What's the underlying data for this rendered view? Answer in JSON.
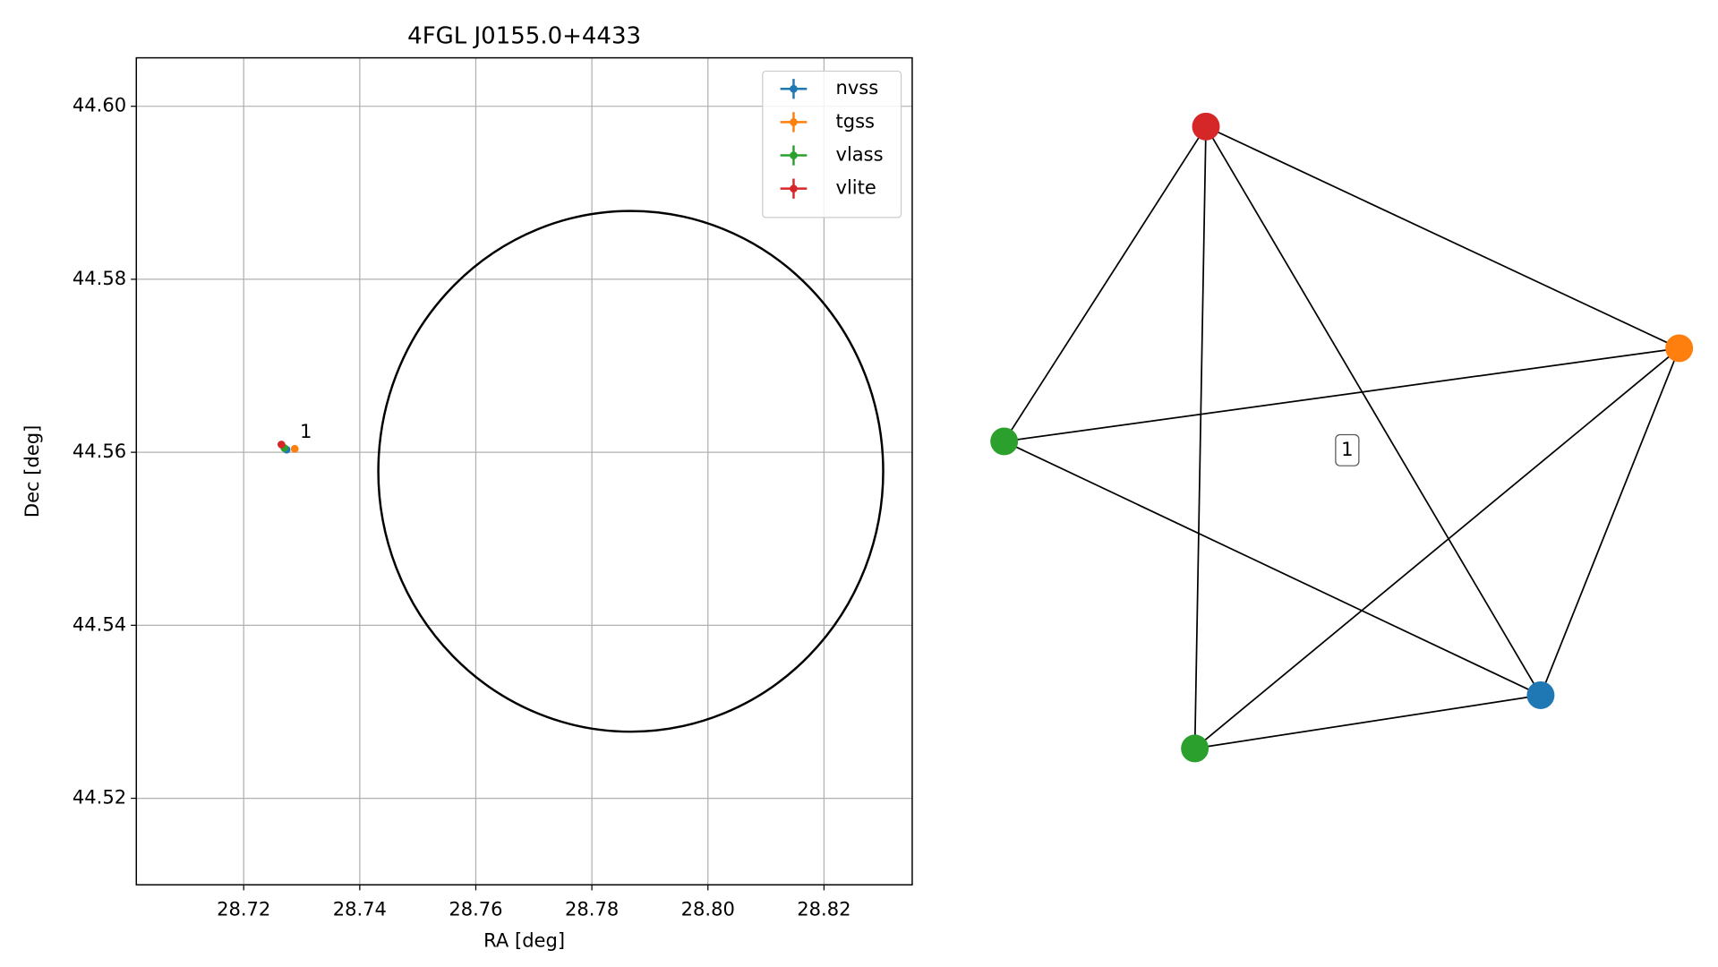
{
  "chart_data": [
    {
      "type": "scatter",
      "title": "4FGL J0155.0+4433",
      "x_label": "RA [deg]",
      "y_label": "Dec [deg]",
      "xlim": [
        28.7015,
        28.8352
      ],
      "ylim": [
        44.51,
        44.6056
      ],
      "xticks": [
        28.72,
        28.74,
        28.76,
        28.78,
        {
          "value": 28.8,
          "label": "28.80"
        },
        28.82
      ],
      "yticks": [
        44.52,
        44.54,
        44.56,
        44.58,
        {
          "value": 44.6,
          "label": "44.60"
        }
      ],
      "grid": true,
      "legend": "upper right",
      "series": [
        {
          "name": "nvss",
          "color": "#1f77b4",
          "x": [
            28.7274
          ],
          "values": [
            44.5603
          ]
        },
        {
          "name": "tgss",
          "color": "#ff7f0e",
          "x": [
            28.7288
          ],
          "values": [
            44.5604
          ]
        },
        {
          "name": "vlass",
          "color": "#2ca02c",
          "x": [
            28.727
          ],
          "values": [
            44.5605
          ]
        },
        {
          "name": "vlite",
          "color": "#d62728",
          "x": [
            28.7265
          ],
          "values": [
            44.5609
          ]
        }
      ],
      "region": {
        "center_x": 28.7867,
        "center_y": 44.5578,
        "width": 0.087,
        "height": 0.0602
      },
      "annotations": [
        {
          "text": "1",
          "x": 28.7297,
          "y": 44.5623
        }
      ]
    },
    {
      "type": "network",
      "label": "1",
      "nodes": [
        {
          "color": "#d62728"
        },
        {
          "color": "#ff7f0e"
        },
        {
          "color": "#2ca02c"
        },
        {
          "color": "#2ca02c"
        },
        {
          "color": "#1f77b4"
        }
      ],
      "edges": [
        [
          0,
          1
        ],
        [
          0,
          2
        ],
        [
          0,
          3
        ],
        [
          0,
          4
        ],
        [
          1,
          2
        ],
        [
          1,
          3
        ],
        [
          1,
          4
        ],
        [
          2,
          4
        ],
        [
          3,
          4
        ]
      ]
    }
  ]
}
